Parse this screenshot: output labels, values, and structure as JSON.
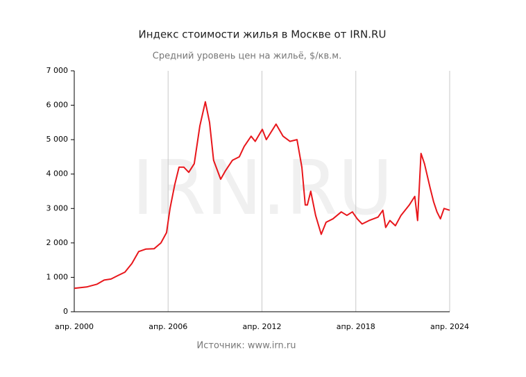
{
  "chart_data": {
    "type": "line",
    "title": "Индекс стоимости жилья в Москве от IRN.RU",
    "subtitle": "Средний уровень цен на жильё, $/кв.м.",
    "source": "Источник: www.irn.ru",
    "watermark": "IRN.RU",
    "x": [
      2000.25,
      2001.05,
      2001.71,
      2002.16,
      2002.6,
      2003.04,
      2003.49,
      2003.93,
      2004.37,
      2004.82,
      2005.35,
      2005.79,
      2006.15,
      2006.37,
      2006.68,
      2006.95,
      2007.26,
      2007.57,
      2007.92,
      2008.28,
      2008.63,
      2008.9,
      2009.16,
      2009.61,
      2009.92,
      2010.36,
      2010.8,
      2011.11,
      2011.56,
      2011.82,
      2012.27,
      2012.53,
      2013.15,
      2013.6,
      2014.04,
      2014.49,
      2014.8,
      2015.02,
      2015.15,
      2015.37,
      2015.68,
      2016.04,
      2016.35,
      2016.79,
      2017.32,
      2017.68,
      2018.03,
      2018.34,
      2018.65,
      2019.1,
      2019.67,
      2019.98,
      2020.16,
      2020.43,
      2020.78,
      2021.14,
      2021.67,
      2022.02,
      2022.2,
      2022.42,
      2022.64,
      2023.0,
      2023.22,
      2023.44,
      2023.66,
      2023.89,
      2024.25
    ],
    "series": [
      {
        "color": "#e8161b",
        "values": [
          680,
          720,
          800,
          920,
          950,
          1050,
          1150,
          1400,
          1750,
          1820,
          1830,
          2000,
          2300,
          3000,
          3700,
          4200,
          4200,
          4050,
          4300,
          5400,
          6100,
          5500,
          4400,
          3850,
          4100,
          4400,
          4500,
          4800,
          5100,
          4950,
          5300,
          5000,
          5450,
          5100,
          4950,
          5000,
          4200,
          3100,
          3100,
          3500,
          2800,
          2250,
          2600,
          2700,
          2900,
          2800,
          2900,
          2700,
          2550,
          2650,
          2750,
          2950,
          2450,
          2650,
          2500,
          2800,
          3100,
          3350,
          2650,
          4600,
          4300,
          3600,
          3200,
          2900,
          2700,
          3000,
          2950
        ]
      }
    ],
    "xlim": [
      2000.25,
      2024.25
    ],
    "xticks": [
      {
        "value": 2000.25,
        "label": "апр. 2000"
      },
      {
        "value": 2006.25,
        "label": "апр. 2006"
      },
      {
        "value": 2012.25,
        "label": "апр. 2012"
      },
      {
        "value": 2018.25,
        "label": "апр. 2018"
      },
      {
        "value": 2024.25,
        "label": "апр. 2024"
      }
    ],
    "ylim": [
      0,
      7000
    ],
    "yticks": [
      0,
      {
        "value": 1000,
        "label": "1 000"
      },
      {
        "value": 2000,
        "label": "2 000"
      },
      {
        "value": 3000,
        "label": "3 000"
      },
      {
        "value": 4000,
        "label": "4 000"
      },
      {
        "value": 5000,
        "label": "5 000"
      },
      {
        "value": 6000,
        "label": "6 000"
      },
      {
        "value": 7000,
        "label": "7 000"
      }
    ],
    "grid": "x"
  }
}
